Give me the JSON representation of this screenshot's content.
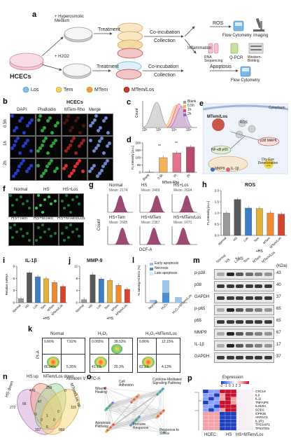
{
  "panel_a": {
    "letter": "a",
    "cells": "HCECs",
    "hyperosmotic": "+ Hyperosmotic Medium",
    "h2o2": "+ H2O2",
    "treatment_top": "Treatment",
    "treatment_bottom": "Treatment",
    "coinc_top": "Co-incubation",
    "coinc_bottom": "Co-incubation",
    "collection_top": "Collection",
    "collection_bottom": "Collection",
    "ros": "ROS",
    "inflammation": "Inflammation",
    "apoptosis": "Apoptosis",
    "flow1": "Flow Cytometry",
    "imaging": "Imaging",
    "rnaseq": "RNA Sequencing",
    "qpcr": "Q-PCR",
    "wb": "Western-Blotting",
    "flow2": "Flow Cytometry",
    "legend": [
      "Los",
      "Tem",
      "MTem",
      "MTem/Los"
    ],
    "legend_colors": [
      "#7ec3e8",
      "#e9d46b",
      "#f0a33c",
      "#c0392b"
    ]
  },
  "panel_b": {
    "letter": "b",
    "title": "HCECs",
    "cols": [
      "DAPI",
      "Phalloidin",
      "MTem-Rho",
      "Merge"
    ],
    "rows": [
      "0.5h",
      "1h",
      "2h"
    ]
  },
  "panel_c": {
    "letter": "c",
    "legend": [
      "Blank",
      "0.5h",
      "1h",
      "2h"
    ],
    "colors": [
      "#9a9a9a",
      "#f2b25a",
      "#d94b6b",
      "#8e6bb5"
    ],
    "xticks": [
      "10²",
      "10³",
      "10⁴",
      "10⁵"
    ],
    "ylabel": "Count"
  },
  "panel_d": {
    "letter": "d",
    "ylabel": "FL Intensity [a.u.]",
    "xlabel": "MTem-Rho",
    "sig": "**",
    "chart_data": {
      "type": "bar",
      "categories": [
        "Blank",
        "0.5h",
        "1h",
        "2h"
      ],
      "values": [
        2,
        100,
        132,
        172
      ],
      "ylim": [
        0,
        200
      ],
      "yticks": [
        "0",
        "50",
        "100",
        "150",
        "200"
      ]
    }
  },
  "panel_e": {
    "letter": "e",
    "cytoplasm": "Cytoplasm",
    "mtem": "MTem/Los",
    "ros": "ROS",
    "p38": "p38 MAPK",
    "nfkb": "NF-κB p65",
    "mmp9": "MMP9",
    "il1b": "IL-1β",
    "dry_eye": "Dry Eye Deterioration"
  },
  "panel_f": {
    "letter": "f",
    "labels": [
      "Normal",
      "HS",
      "HS+Los",
      "HS+Tem",
      "HS+MTem",
      "HS+MTem/Los"
    ]
  },
  "panel_g": {
    "letter": "g",
    "labels": [
      "Normal",
      "HS",
      "HS+Los",
      "HS+Tem",
      "HS+MTem",
      "HS+MTem/Los"
    ],
    "means": [
      "Mean: 2174",
      "Mean: 3469",
      "Mean: 2694",
      "Mean: 2685",
      "Mean: 2387",
      "Mean: 1671"
    ],
    "xlabel": "DCF-A",
    "ylabel": "Count"
  },
  "panel_h": {
    "letter": "h",
    "title": "ROS",
    "ylabel": "FL Intensity [a.u.]",
    "hs": "+HS",
    "chart_data": {
      "type": "bar",
      "categories": [
        "Normal",
        "HS",
        "Los",
        "Tem",
        "MTem",
        "MTem/Los"
      ],
      "values": [
        1.0,
        1.6,
        1.22,
        1.2,
        1.0,
        0.95
      ],
      "ylim": [
        0,
        2.0
      ],
      "yticks": [
        "0.0",
        "0.5",
        "1.0",
        "1.5",
        "2.0"
      ],
      "colors": [
        "#9a9a9a",
        "#595959",
        "#3d7fc4",
        "#e2b23a",
        "#f08a2e",
        "#d8452e"
      ]
    }
  },
  "panel_i": {
    "letter": "i",
    "title": "IL-1β",
    "ylabel": "Relative mRNA",
    "hs": "+HS",
    "chart_data": {
      "type": "bar",
      "categories": [
        "Normal",
        "HS",
        "Los",
        "Tem",
        "MTem",
        "MTem/Los"
      ],
      "values": [
        1.0,
        7.4,
        6.4,
        5.9,
        5.0,
        4.0
      ],
      "ylim": [
        0,
        9
      ],
      "yticks": [
        "0",
        "3",
        "6",
        "9"
      ],
      "colors": [
        "#9a9a9a",
        "#595959",
        "#3d7fc4",
        "#e2b23a",
        "#f08a2e",
        "#d8452e"
      ]
    }
  },
  "panel_j": {
    "letter": "j",
    "title": "MMP-9",
    "hs": "+HS",
    "chart_data": {
      "type": "bar",
      "categories": [
        "Normal",
        "HS",
        "Los",
        "Tem",
        "MTem",
        "MTem/Los"
      ],
      "values": [
        1.0,
        9.2,
        7.8,
        7.3,
        5.7,
        4.4
      ],
      "ylim": [
        0,
        12
      ],
      "yticks": [
        "0",
        "4",
        "8",
        "12"
      ],
      "colors": [
        "#9a9a9a",
        "#595959",
        "#3d7fc4",
        "#e2b23a",
        "#f08a2e",
        "#d8452e"
      ]
    }
  },
  "panel_l": {
    "letter": "l",
    "legend": [
      "Early apoptosis",
      "Necrosis",
      "Late apoptosis"
    ],
    "legend_colors": [
      "#9ec5e8",
      "#4a8fd1",
      "#d7e8f6"
    ],
    "categories": [
      "Normal",
      "H₂O₂",
      "H₂O₂+MTem/Los"
    ],
    "ylabel": "% among HCECs (%)"
  },
  "panel_m": {
    "letter": "m",
    "hs": "+HS",
    "cols": [
      "Normal",
      "HS",
      "Los",
      "Tem",
      "MTem",
      "MTem/Los"
    ],
    "rows": [
      "p-p38",
      "p38",
      "GAPDH",
      "p-p65",
      "p65",
      "MMP9",
      "IL-1β",
      "GAPDH"
    ],
    "kda": [
      "43",
      "40",
      "37",
      "65",
      "65",
      "67",
      "17",
      "37"
    ],
    "kda_header": "(KDa)"
  },
  "panel_k": {
    "letter": "k",
    "titles": [
      "Normal",
      "H₂O₂",
      "H₂O₂+MTem/Los"
    ],
    "q_ul": [
      "0.66%",
      "0.065%",
      "0.86%"
    ],
    "q_ur": [
      "7.92%",
      "38.53%",
      "12.15%"
    ],
    "q_ll": [
      "86.04%",
      "41.1%",
      "83.1%"
    ],
    "q_lr": [
      "5.35%",
      "20.3%",
      "4.13%"
    ],
    "xlabel": "Annexin V FITC-A",
    "ylabel": "PI-A"
  },
  "panel_n": {
    "letter": "n",
    "sets": [
      "HS down",
      "HS up",
      "MTem/Los down",
      "MTem/Los up"
    ],
    "numbers": [
      "470",
      "259",
      "0",
      "272",
      "66",
      "47",
      "115",
      "0",
      "0",
      "1",
      "0",
      "0",
      "337",
      "6",
      "966"
    ]
  },
  "panel_o": {
    "letter": "o",
    "terms": [
      "Wound Healing",
      "Cell Adhesion",
      "Cytokine-Mediated Signaling Pathway",
      "Apoptosis Pathway",
      "Immune Response",
      "Response to Stress"
    ]
  },
  "panel_p": {
    "letter": "p",
    "legend_title": "Expression",
    "scale": [
      "-2",
      "-1",
      "0",
      "1",
      "2",
      "3"
    ],
    "genes": [
      "CXCL8",
      "IL6",
      "IL11",
      "TNFAIP6",
      "IL31RA",
      "SOD2",
      "GPR35",
      "AKR1C1",
      "IL1R1",
      "TP53AIP1",
      "TP53TG5"
    ],
    "groups": [
      "HCEC",
      "HS",
      "HS+MTem/Los"
    ]
  }
}
